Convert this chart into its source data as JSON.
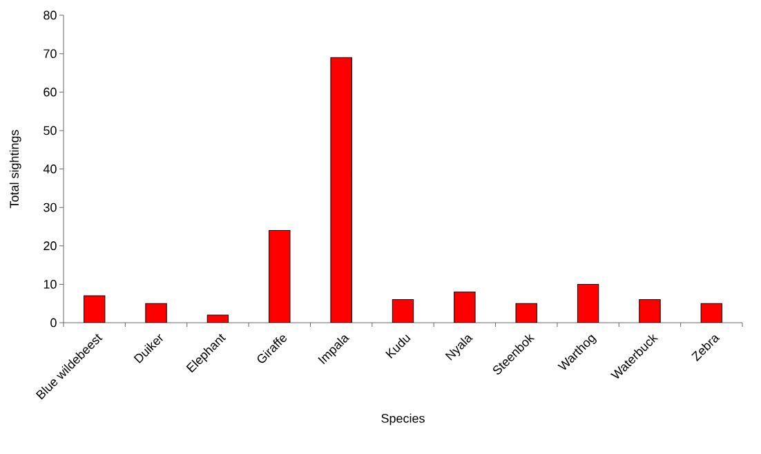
{
  "chart_data": {
    "type": "bar",
    "xlabel": "Species",
    "ylabel": "Total sightings",
    "categories": [
      "Blue wildebeest",
      "Duiker",
      "Elephant",
      "Giraffe",
      "Impala",
      "Kudu",
      "Nyala",
      "Steenbok",
      "Warthog",
      "Waterbuck",
      "Zebra"
    ],
    "values": [
      7,
      5,
      2,
      24,
      69,
      6,
      8,
      5,
      10,
      6,
      5
    ],
    "color": "#ff0000",
    "ylim": [
      0,
      80
    ],
    "yticks": [
      0,
      10,
      20,
      30,
      40,
      50,
      60,
      70,
      80
    ]
  }
}
